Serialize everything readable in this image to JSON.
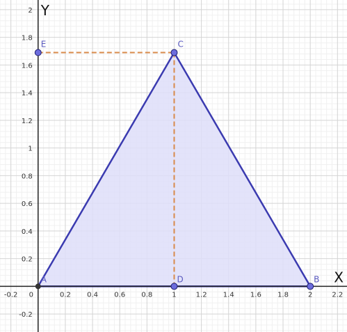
{
  "colors": {
    "minor_grid": "#f0f0f0",
    "major_grid": "#d4d4d4",
    "axis": "#222222",
    "triangle_fill": "#dedef9",
    "triangle_stroke": "#3b3bb0",
    "point_fill": "#6c6cdd",
    "point_stroke": "#1e1e6e",
    "origin_point": "#333333",
    "dashed": "#d88a4a",
    "point_label": "#5a5abf"
  },
  "axes": {
    "x_name": "X",
    "y_name": "Y",
    "xlim": [
      -0.28,
      2.27
    ],
    "ylim": [
      -0.33,
      2.07
    ],
    "x_ticks": [
      {
        "value": -0.2,
        "label": "-0.2"
      },
      {
        "value": 0,
        "label": "0"
      },
      {
        "value": 0.2,
        "label": "0.2"
      },
      {
        "value": 0.4,
        "label": "0.4"
      },
      {
        "value": 0.6,
        "label": "0.6"
      },
      {
        "value": 0.8,
        "label": "0.8"
      },
      {
        "value": 1,
        "label": "1"
      },
      {
        "value": 1.2,
        "label": "1.2"
      },
      {
        "value": 1.4,
        "label": "1.4"
      },
      {
        "value": 1.6,
        "label": "1.6"
      },
      {
        "value": 1.8,
        "label": "1.8"
      },
      {
        "value": 2,
        "label": "2"
      },
      {
        "value": 2.2,
        "label": "2.2"
      }
    ],
    "y_ticks": [
      {
        "value": -0.2,
        "label": "-0.2"
      },
      {
        "value": 0.2,
        "label": "0.2"
      },
      {
        "value": 0.4,
        "label": "0.4"
      },
      {
        "value": 0.6,
        "label": "0.6"
      },
      {
        "value": 0.8,
        "label": "0.8"
      },
      {
        "value": 1,
        "label": "1"
      },
      {
        "value": 1.2,
        "label": "1.2"
      },
      {
        "value": 1.4,
        "label": "1.4"
      },
      {
        "value": 1.6,
        "label": "1.6"
      },
      {
        "value": 1.8,
        "label": "1.8"
      },
      {
        "value": 2,
        "label": "2"
      }
    ],
    "grid_major_step": 0.2,
    "grid_minor_step": 0.04
  },
  "points": [
    {
      "id": "A",
      "label": "A",
      "x": 0,
      "y": 0,
      "style": "origin"
    },
    {
      "id": "B",
      "label": "B",
      "x": 2,
      "y": 0,
      "style": "free"
    },
    {
      "id": "C",
      "label": "C",
      "x": 1,
      "y": 1.69,
      "style": "free"
    },
    {
      "id": "D",
      "label": "D",
      "x": 1,
      "y": 0,
      "style": "free"
    },
    {
      "id": "E",
      "label": "E",
      "x": 0,
      "y": 1.69,
      "style": "free"
    }
  ],
  "triangle": [
    "A",
    "B",
    "C"
  ],
  "dashed_segments": [
    [
      "E",
      "C"
    ],
    [
      "C",
      "D"
    ]
  ]
}
